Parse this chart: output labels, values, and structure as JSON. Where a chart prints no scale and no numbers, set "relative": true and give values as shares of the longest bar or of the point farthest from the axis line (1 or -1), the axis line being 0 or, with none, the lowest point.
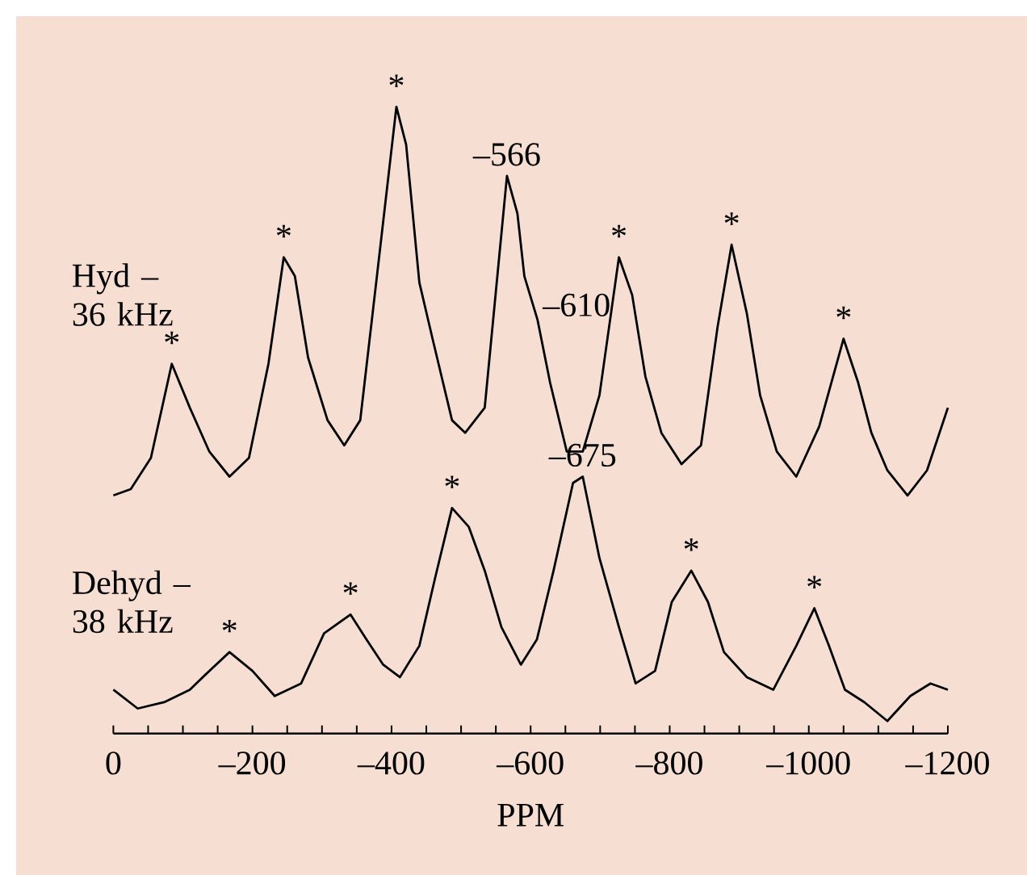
{
  "chart_data": {
    "type": "line",
    "relative": true,
    "xlabel": "PPM",
    "xlim": [
      0,
      -1200
    ],
    "xticks": [
      0,
      {
        "value": -50,
        "label": null
      },
      {
        "value": -100,
        "label": null
      },
      {
        "value": -150,
        "label": null
      },
      {
        "value": -200,
        "label": "–200"
      },
      {
        "value": -250,
        "label": null
      },
      {
        "value": -300,
        "label": null
      },
      {
        "value": -350,
        "label": null
      },
      {
        "value": -400,
        "label": "–400"
      },
      {
        "value": -450,
        "label": null
      },
      {
        "value": -500,
        "label": null
      },
      {
        "value": -550,
        "label": null
      },
      {
        "value": -600,
        "label": "–600"
      },
      {
        "value": -650,
        "label": null
      },
      {
        "value": -700,
        "label": null
      },
      {
        "value": -750,
        "label": null
      },
      {
        "value": -800,
        "label": "–800"
      },
      {
        "value": -850,
        "label": null
      },
      {
        "value": -900,
        "label": null
      },
      {
        "value": -950,
        "label": null
      },
      {
        "value": -1000,
        "label": "–1000"
      },
      {
        "value": -1050,
        "label": null
      },
      {
        "value": -1100,
        "label": null
      },
      {
        "value": -1150,
        "label": null
      },
      {
        "value": -1200,
        "label": "–1200"
      }
    ],
    "series": [
      {
        "name": "Hyd – 36 kHz",
        "color": "#000000",
        "x": [
          0,
          -25,
          -54,
          -84,
          -110,
          -138,
          -167,
          -195,
          -223,
          -245,
          -261,
          -280,
          -308,
          -332,
          -355,
          -379,
          -407,
          -421,
          -440,
          -459,
          -487,
          -506,
          -534,
          -566,
          -581,
          -591,
          -610,
          -628,
          -652,
          -675,
          -699,
          -727,
          -746,
          -765,
          -788,
          -817,
          -845,
          -869,
          -889,
          -911,
          -930,
          -954,
          -982,
          -1015,
          -1050,
          -1071,
          -1090,
          -1113,
          -1142,
          -1170,
          -1200
        ],
        "values": [
          0.38,
          0.39,
          0.44,
          0.59,
          0.52,
          0.45,
          0.41,
          0.44,
          0.59,
          0.76,
          0.73,
          0.6,
          0.5,
          0.46,
          0.5,
          0.73,
          1.0,
          0.94,
          0.72,
          0.63,
          0.5,
          0.48,
          0.52,
          0.89,
          0.83,
          0.73,
          0.66,
          0.56,
          0.45,
          0.45,
          0.54,
          0.76,
          0.7,
          0.57,
          0.48,
          0.43,
          0.46,
          0.65,
          0.78,
          0.67,
          0.54,
          0.45,
          0.41,
          0.49,
          0.63,
          0.56,
          0.48,
          0.42,
          0.38,
          0.42,
          0.52
        ]
      },
      {
        "name": "Dehyd – 38 kHz",
        "color": "#000000",
        "x": [
          0,
          -35,
          -73,
          -110,
          -138,
          -167,
          -200,
          -232,
          -270,
          -303,
          -341,
          -364,
          -388,
          -412,
          -440,
          -463,
          -487,
          -511,
          -534,
          -558,
          -586,
          -609,
          -633,
          -661,
          -675,
          -699,
          -727,
          -751,
          -779,
          -803,
          -831,
          -855,
          -878,
          -911,
          -949,
          -982,
          -1008,
          -1029,
          -1052,
          -1080,
          -1113,
          -1146,
          -1175,
          -1200
        ],
        "values": [
          0.07,
          0.04,
          0.05,
          0.07,
          0.1,
          0.13,
          0.1,
          0.06,
          0.08,
          0.16,
          0.19,
          0.15,
          0.11,
          0.09,
          0.14,
          0.25,
          0.36,
          0.33,
          0.26,
          0.17,
          0.11,
          0.15,
          0.26,
          0.4,
          0.41,
          0.28,
          0.17,
          0.08,
          0.1,
          0.21,
          0.26,
          0.21,
          0.13,
          0.09,
          0.07,
          0.14,
          0.2,
          0.14,
          0.07,
          0.05,
          0.02,
          0.06,
          0.08,
          0.07
        ]
      }
    ],
    "annotations": [
      {
        "text": "*",
        "x": -84,
        "y": 0.59
      },
      {
        "text": "*",
        "x": -245,
        "y": 0.76
      },
      {
        "text": "*",
        "x": -407,
        "y": 1.0
      },
      {
        "text": "–566",
        "x": -566,
        "y": 0.89
      },
      {
        "text": "–610",
        "x": -610,
        "y": 0.66
      },
      {
        "text": "*",
        "x": -727,
        "y": 0.76
      },
      {
        "text": "*",
        "x": -889,
        "y": 0.78
      },
      {
        "text": "*",
        "x": -1050,
        "y": 0.63
      },
      {
        "text": "*",
        "x": -167,
        "y": 0.13
      },
      {
        "text": "*",
        "x": -341,
        "y": 0.19
      },
      {
        "text": "*",
        "x": -487,
        "y": 0.36
      },
      {
        "text": "–675",
        "x": -675,
        "y": 0.41
      },
      {
        "text": "*",
        "x": -831,
        "y": 0.26
      },
      {
        "text": "*",
        "x": -1008,
        "y": 0.2
      }
    ]
  }
}
